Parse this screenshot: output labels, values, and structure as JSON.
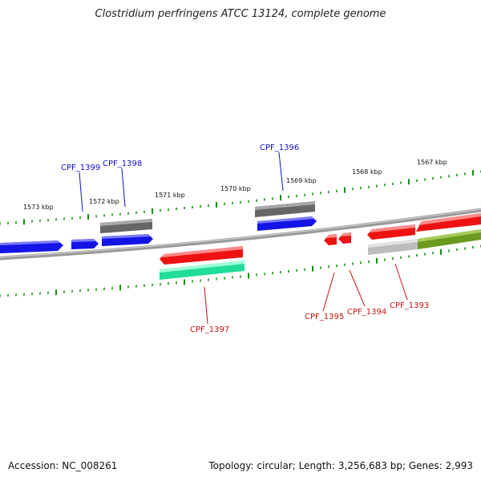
{
  "title": "Clostridium perfringens ATCC 13124, complete genome",
  "accession_text": "Accession: NC_008261",
  "summary_text": "Topology: circular; Length: 3,256,683 bp; Genes: 2,993",
  "scale_labels": [
    "1573 kbp",
    "1572 kbp",
    "1571 kbp",
    "1570 kbp",
    "1569 kbp",
    "1568 kbp",
    "1567 kbp"
  ],
  "gene_labels": {
    "CPF_1399": "CPF_1399",
    "CPF_1398": "CPF_1398",
    "CPF_1396": "CPF_1396",
    "CPF_1397": "CPF_1397",
    "CPF_1395": "CPF_1395",
    "CPF_1394": "CPF_1394",
    "CPF_1393": "CPF_1393"
  },
  "colors": {
    "forward_label": "#1010c8",
    "reverse_label": "#cc1010",
    "tick": "#1a8a1a",
    "backbone": "#8a8a8a",
    "blue": "#1414e6",
    "gray": "#666666",
    "red": "#ee1111",
    "teal": "#22dd99",
    "lightgray": "#bcbcbc",
    "olive": "#6a9a1e"
  }
}
